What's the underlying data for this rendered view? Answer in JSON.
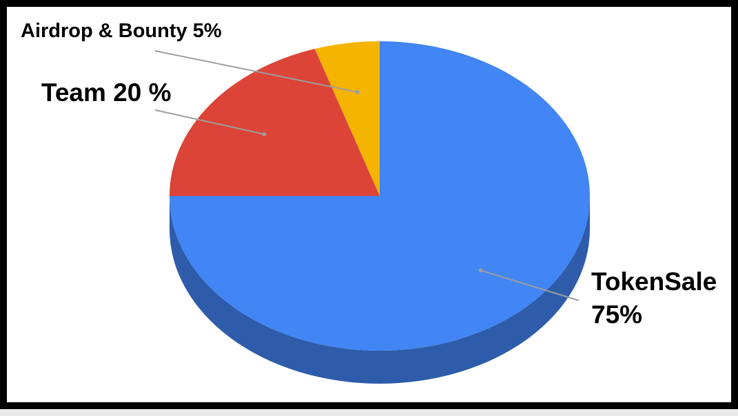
{
  "chart_data": {
    "type": "pie",
    "title": "",
    "slices": [
      {
        "label": "Airdrop & Bounty 5%",
        "value": 5,
        "color": "#f4b400"
      },
      {
        "label": "Team 20 %",
        "value": 20,
        "color": "#db4437"
      },
      {
        "label": "TokenSale",
        "label_line2": "75%",
        "value": 75,
        "color": "#4285f4"
      }
    ],
    "style": "3d",
    "side_color": "#2e5caa",
    "legend": "none"
  }
}
